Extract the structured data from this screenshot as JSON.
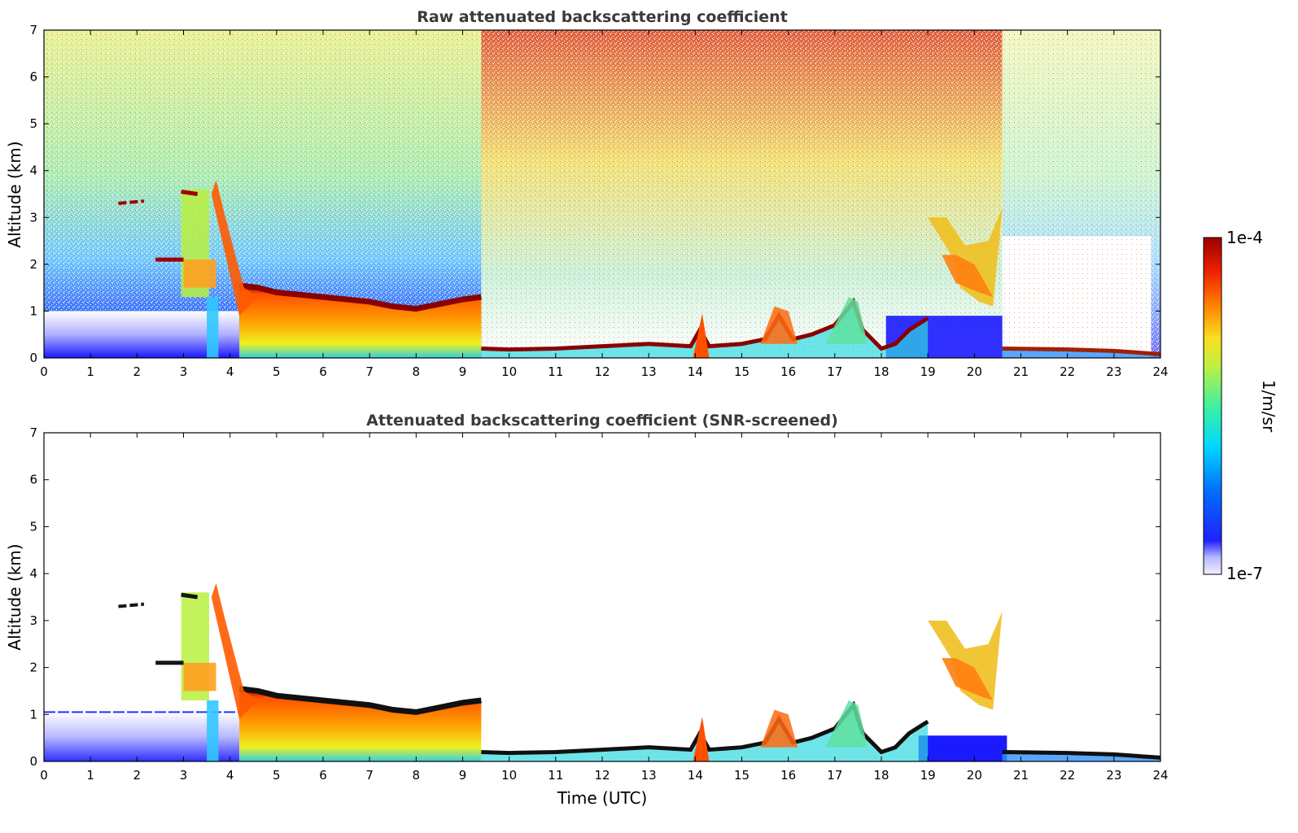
{
  "chart_data": [
    {
      "type": "heatmap",
      "title": "Raw attenuated backscattering coefficient",
      "xlabel": "",
      "ylabel": "Altitude (km)",
      "xlim": [
        0,
        24
      ],
      "ylim": [
        0,
        7
      ],
      "x_ticks": [
        "0",
        "1",
        "2",
        "3",
        "4",
        "5",
        "6",
        "7",
        "8",
        "9",
        "10",
        "11",
        "12",
        "13",
        "14",
        "15",
        "16",
        "17",
        "18",
        "19",
        "20",
        "21",
        "22",
        "23",
        "24"
      ],
      "y_ticks": [
        "0",
        "1",
        "2",
        "3",
        "4",
        "5",
        "6",
        "7"
      ],
      "layers": [
        {
          "kind": "boundary_layer_top",
          "points": [
            [
              4.3,
              1.5
            ],
            [
              5,
              1.35
            ],
            [
              6,
              1.25
            ],
            [
              7,
              1.15
            ],
            [
              8,
              1.05
            ],
            [
              9,
              1.25
            ],
            [
              9.3,
              1.3
            ]
          ]
        },
        {
          "kind": "low_cloud",
          "points": [
            [
              9.5,
              0.18
            ],
            [
              11,
              0.2
            ],
            [
              12,
              0.25
            ],
            [
              13,
              0.3
            ],
            [
              14,
              0.25
            ],
            [
              15,
              0.3
            ],
            [
              16,
              0.3
            ],
            [
              17,
              0.4
            ],
            [
              18,
              0.2
            ],
            [
              18.5,
              0.4
            ],
            [
              19,
              0.8
            ]
          ]
        },
        {
          "kind": "elevated_layer",
          "points": [
            [
              21,
              0.2
            ],
            [
              22,
              0.18
            ],
            [
              23,
              0.15
            ],
            [
              24,
              0.1
            ]
          ]
        },
        {
          "kind": "aerosol_plume",
          "x_range": [
            19,
            20.6
          ],
          "alt_range": [
            1.2,
            3.0
          ]
        },
        {
          "kind": "elevated_aerosol",
          "x_range": [
            2.4,
            4.0
          ],
          "alt_range": [
            2.0,
            3.7
          ]
        }
      ],
      "grid": false
    },
    {
      "type": "heatmap",
      "title": "Attenuated backscattering coefficient (SNR-screened)",
      "xlabel": "Time (UTC)",
      "ylabel": "Altitude (km)",
      "xlim": [
        0,
        24
      ],
      "ylim": [
        0,
        7
      ],
      "x_ticks": [
        "0",
        "1",
        "2",
        "3",
        "4",
        "5",
        "6",
        "7",
        "8",
        "9",
        "10",
        "11",
        "12",
        "13",
        "14",
        "15",
        "16",
        "17",
        "18",
        "19",
        "20",
        "21",
        "22",
        "23",
        "24"
      ],
      "y_ticks": [
        "0",
        "1",
        "2",
        "3",
        "4",
        "5",
        "6",
        "7"
      ],
      "grid": false
    }
  ],
  "colorbar": {
    "label": "1/m/sr",
    "min_label": "1e-7",
    "max_label": "1e-4",
    "colors": [
      "#f0f0ff",
      "#c8c8ff",
      "#8080ff",
      "#1010ff",
      "#0050ff",
      "#0090ff",
      "#00c8ff",
      "#20e8d0",
      "#40f0a0",
      "#80f060",
      "#c0f040",
      "#f0f020",
      "#ffc000",
      "#ff8000",
      "#ff4000",
      "#e00000",
      "#a00000"
    ]
  }
}
